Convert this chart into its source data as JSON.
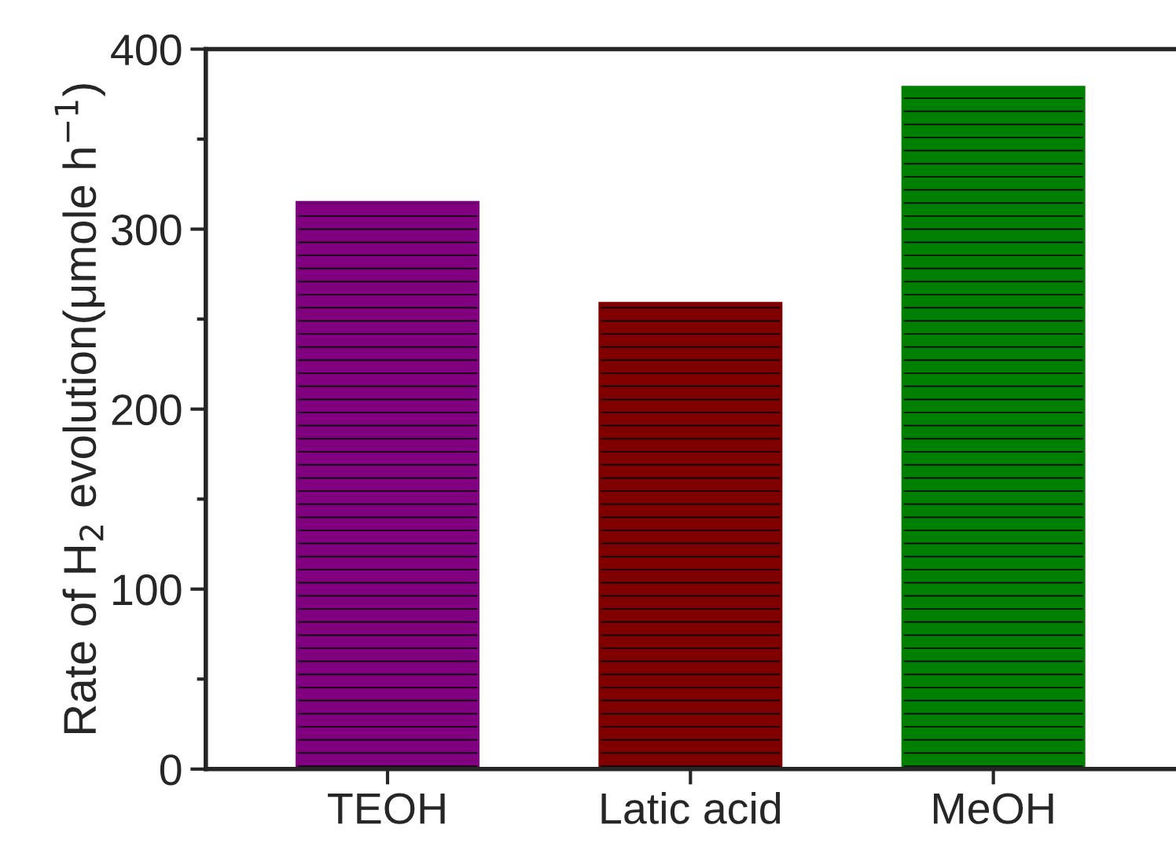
{
  "chart_data": {
    "type": "bar",
    "ylabel": "Rate of H$_{2}$ evolution(μmole h$^{−1}$)",
    "categories": [
      "TEOH",
      "Latic acid",
      "MeOH"
    ],
    "values": [
      315,
      259,
      379
    ],
    "colors": [
      "#800080",
      "#800000",
      "#008000"
    ],
    "ylim": [
      0,
      400
    ],
    "yticks": [
      0,
      100,
      200,
      300,
      400
    ],
    "grid": false,
    "legend": false
  }
}
